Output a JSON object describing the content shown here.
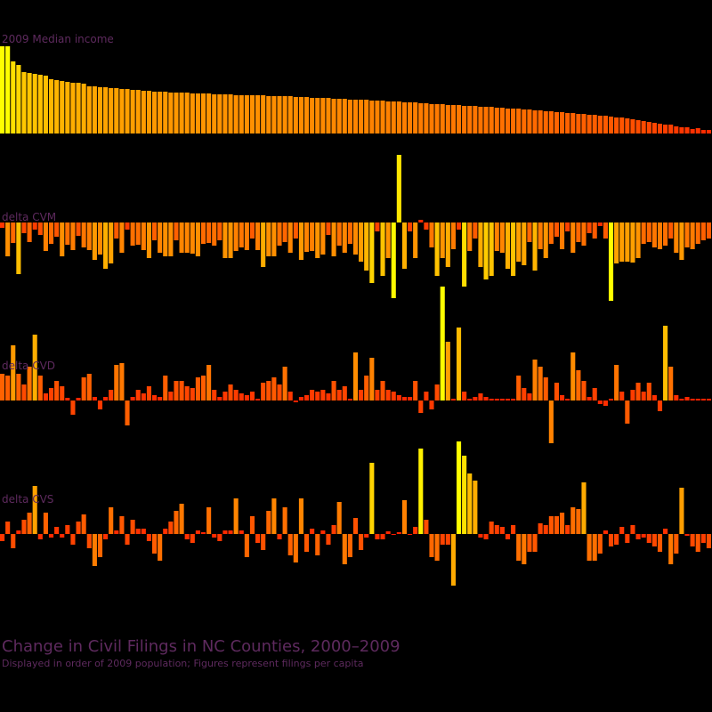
{
  "title": "Change in Civil Filings in NC Counties, 2000–2009",
  "subtitle": "Displayed in order of 2009 population; Figures represent filings per capita",
  "colors": {
    "background": "#000000",
    "label": "#5e2a5e",
    "low": "#ff1a00",
    "high": "#ffff00"
  },
  "chart_data": [
    {
      "type": "bar",
      "title": "2009 Median income",
      "series": [
        {
          "name": "2009 Median income",
          "values": [
            98,
            98,
            81,
            77,
            69,
            68,
            67,
            66,
            65,
            61,
            60,
            59,
            58,
            57,
            57,
            56,
            53,
            53,
            52,
            52,
            51,
            51,
            50,
            50,
            49,
            49,
            48,
            48,
            47,
            47,
            47,
            46,
            46,
            46,
            46,
            45,
            45,
            45,
            45,
            44,
            44,
            44,
            44,
            43,
            43,
            43,
            43,
            43,
            43,
            42,
            42,
            42,
            42,
            42,
            41,
            41,
            41,
            40,
            40,
            40,
            40,
            39,
            39,
            39,
            38,
            38,
            38,
            38,
            37,
            37,
            37,
            36,
            36,
            36,
            35,
            35,
            35,
            34,
            34,
            33,
            33,
            33,
            32,
            32,
            32,
            31,
            31,
            31,
            30,
            30,
            30,
            29,
            29,
            28,
            28,
            28,
            27,
            27,
            26,
            26,
            25,
            25,
            24,
            24,
            23,
            23,
            22,
            22,
            21,
            21,
            20,
            20,
            19,
            18,
            18,
            17,
            16,
            15,
            14,
            13,
            12,
            11,
            10,
            10,
            8,
            7,
            7,
            5,
            6,
            4,
            4
          ]
        }
      ]
    },
    {
      "type": "bar",
      "title": "delta CVM",
      "series": [
        {
          "name": "delta CVM",
          "values": [
            -6,
            -38,
            -23,
            -58,
            -12,
            -22,
            -8,
            -14,
            -32,
            -24,
            -16,
            -38,
            -25,
            -31,
            -15,
            -28,
            -31,
            -42,
            -36,
            -52,
            -46,
            -18,
            -34,
            -8,
            -26,
            -25,
            -31,
            -40,
            -20,
            -34,
            -38,
            -38,
            -20,
            -34,
            -34,
            -35,
            -38,
            -24,
            -23,
            -26,
            -20,
            -40,
            -40,
            -32,
            -28,
            -31,
            -18,
            -31,
            -50,
            -38,
            -38,
            -26,
            -22,
            -34,
            -18,
            -42,
            -33,
            -32,
            -40,
            -36,
            -14,
            -38,
            -26,
            -34,
            -24,
            -36,
            -44,
            -54,
            -68,
            -10,
            -60,
            -40,
            -85,
            76,
            -52,
            -10,
            -40,
            3,
            -8,
            -28,
            -60,
            -40,
            -50,
            -30,
            -8,
            -72,
            -32,
            -18,
            -50,
            -64,
            -60,
            -32,
            -34,
            -52,
            -60,
            -44,
            -48,
            -22,
            -54,
            -30,
            -40,
            -24,
            -16,
            -30,
            -10,
            -34,
            -22,
            -26,
            -12,
            -18,
            -4,
            -18,
            -88,
            -46,
            -44,
            -44,
            -45,
            -40,
            -24,
            -22,
            -28,
            -30,
            -26,
            -18,
            -34,
            -42,
            -28,
            -30,
            -24,
            -20,
            -18
          ]
        }
      ]
    },
    {
      "type": "bar",
      "title": "delta CVD",
      "series": [
        {
          "name": "delta CVD",
          "values": [
            30,
            28,
            62,
            30,
            18,
            38,
            74,
            28,
            8,
            14,
            22,
            16,
            3,
            -16,
            3,
            26,
            30,
            4,
            -10,
            4,
            12,
            40,
            42,
            -28,
            4,
            12,
            8,
            16,
            6,
            4,
            28,
            10,
            22,
            22,
            16,
            14,
            26,
            28,
            40,
            12,
            4,
            10,
            18,
            12,
            8,
            6,
            10,
            2,
            20,
            22,
            26,
            18,
            38,
            10,
            -2,
            4,
            6,
            12,
            10,
            12,
            8,
            22,
            12,
            16,
            2,
            54,
            12,
            28,
            48,
            12,
            22,
            12,
            10,
            6,
            4,
            4,
            22,
            -14,
            10,
            -10,
            18,
            128,
            66,
            2,
            82,
            10,
            2,
            4,
            8,
            4,
            2,
            2,
            2,
            2,
            2,
            28,
            14,
            8,
            46,
            38,
            26,
            -48,
            20,
            6,
            2,
            54,
            34,
            22,
            4,
            14,
            -4,
            -6,
            2,
            40,
            10,
            -26,
            12,
            20,
            10,
            20,
            6,
            -12,
            84,
            38,
            6,
            2,
            4,
            2,
            2,
            2,
            2
          ]
        }
      ]
    },
    {
      "type": "bar",
      "title": "delta CVS",
      "series": [
        {
          "name": "delta CVS",
          "values": [
            -8,
            14,
            -16,
            4,
            16,
            24,
            54,
            -6,
            24,
            -4,
            8,
            -4,
            10,
            -12,
            14,
            22,
            -16,
            -36,
            -26,
            -6,
            30,
            4,
            20,
            -12,
            16,
            6,
            6,
            -8,
            -22,
            -30,
            6,
            14,
            26,
            34,
            -6,
            -10,
            4,
            2,
            30,
            -4,
            -8,
            4,
            4,
            40,
            4,
            -26,
            20,
            -10,
            -18,
            26,
            40,
            -6,
            30,
            -24,
            -32,
            40,
            -20,
            6,
            -24,
            4,
            -12,
            10,
            36,
            -34,
            -26,
            18,
            -18,
            -4,
            80,
            -6,
            -6,
            3,
            0,
            2,
            38,
            0,
            8,
            96,
            16,
            -26,
            -30,
            -12,
            -12,
            -58,
            104,
            88,
            68,
            60,
            -4,
            -6,
            14,
            10,
            8,
            -6,
            10,
            -30,
            -34,
            -20,
            -20,
            12,
            10,
            20,
            20,
            24,
            10,
            30,
            28,
            58,
            -30,
            -30,
            -22,
            4,
            -14,
            -12,
            8,
            -10,
            10,
            -6,
            -4,
            -10,
            -14,
            -20,
            6,
            -34,
            -22,
            52,
            -2,
            -14,
            -20,
            -10,
            -16
          ]
        }
      ]
    }
  ]
}
